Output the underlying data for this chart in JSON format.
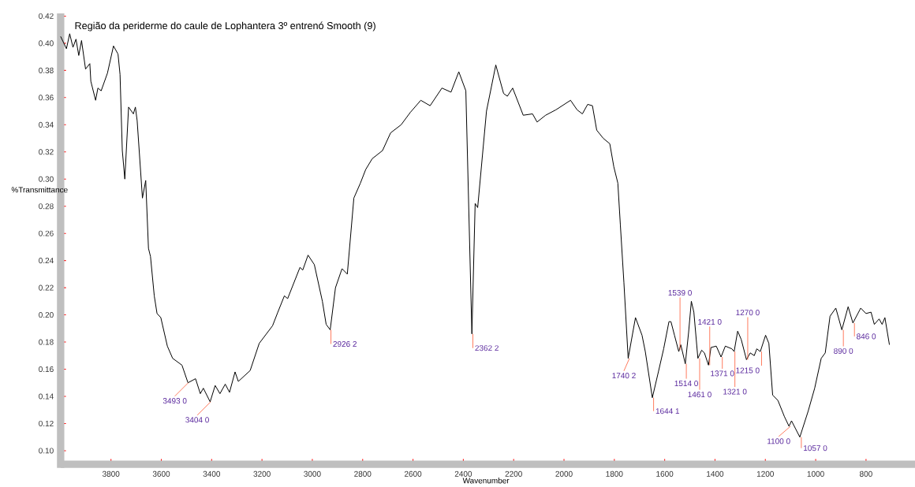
{
  "chart_data": {
    "type": "line",
    "title": "Região da periderme do caule de Lophantera 3º entrenó Smooth (9)",
    "xlabel": "Wavenumber",
    "ylabel": "%Transmittance",
    "xlim": [
      4000,
      620
    ],
    "ylim": [
      0.09,
      0.422
    ],
    "xticks": [
      3800,
      3600,
      3400,
      3200,
      3000,
      2800,
      2600,
      2400,
      2200,
      2000,
      1800,
      1600,
      1400,
      1200,
      1000,
      800
    ],
    "yticks": [
      {
        "value": 0.1,
        "label": "0.10"
      },
      {
        "value": 0.12,
        "label": "0.12"
      },
      {
        "value": 0.14,
        "label": "0.14"
      },
      {
        "value": 0.16,
        "label": "0.16"
      },
      {
        "value": 0.18,
        "label": "0.18"
      },
      {
        "value": 0.2,
        "label": "0.20"
      },
      {
        "value": 0.22,
        "label": "0.22"
      },
      {
        "value": 0.24,
        "label": "0.24"
      },
      {
        "value": 0.26,
        "label": "0.26"
      },
      {
        "value": 0.28,
        "label": "0.28"
      },
      {
        "value": 0.3,
        "label": "0.30"
      },
      {
        "value": 0.32,
        "label": "0.32"
      },
      {
        "value": 0.34,
        "label": "0.34"
      },
      {
        "value": 0.36,
        "label": "0.36"
      },
      {
        "value": 0.38,
        "label": "0.38"
      },
      {
        "value": 0.4,
        "label": "0.40"
      },
      {
        "value": 0.42,
        "label": "0.42"
      }
    ],
    "grid": false,
    "marker": "none",
    "line_style": "solid",
    "series": [
      {
        "color": "#000000",
        "x": [
          4000,
          3977,
          3964,
          3951,
          3939,
          3928,
          3917,
          3901,
          3884,
          3880,
          3861,
          3852,
          3839,
          3814,
          3790,
          3772,
          3764,
          3755,
          3745,
          3730,
          3711,
          3703,
          3696,
          3675,
          3662,
          3651,
          3643,
          3628,
          3617,
          3602,
          3576,
          3555,
          3518,
          3494,
          3464,
          3445,
          3433,
          3406,
          3386,
          3367,
          3346,
          3329,
          3307,
          3294,
          3247,
          3211,
          3158,
          3137,
          3111,
          3098,
          3049,
          3038,
          3017,
          2992,
          2960,
          2945,
          2929,
          2908,
          2882,
          2861,
          2835,
          2809,
          2788,
          2762,
          2721,
          2689,
          2647,
          2611,
          2569,
          2532,
          2485,
          2449,
          2418,
          2390,
          2366,
          2353,
          2343,
          2308,
          2271,
          2240,
          2225,
          2204,
          2162,
          2125,
          2107,
          2073,
          2032,
          1974,
          1948,
          1927,
          1906,
          1887,
          1870,
          1844,
          1818,
          1802,
          1786,
          1776,
          1762,
          1745,
          1716,
          1690,
          1677,
          1649,
          1625,
          1604,
          1583,
          1575,
          1561,
          1544,
          1536,
          1518,
          1505,
          1494,
          1484,
          1468,
          1453,
          1442,
          1426,
          1416,
          1395,
          1376,
          1359,
          1333,
          1324,
          1310,
          1296,
          1275,
          1260,
          1244,
          1234,
          1220,
          1199,
          1186,
          1171,
          1150,
          1124,
          1106,
          1096,
          1063,
          1030,
          1004,
          978,
          962,
          943,
          920,
          896,
          871,
          852,
          821,
          800,
          780,
          767,
          748,
          736,
          725,
          707
        ],
        "values": [
          0.405,
          0.396,
          0.407,
          0.397,
          0.403,
          0.391,
          0.402,
          0.381,
          0.385,
          0.372,
          0.358,
          0.367,
          0.365,
          0.378,
          0.398,
          0.392,
          0.377,
          0.321,
          0.3,
          0.353,
          0.348,
          0.353,
          0.343,
          0.286,
          0.299,
          0.249,
          0.243,
          0.214,
          0.201,
          0.198,
          0.177,
          0.168,
          0.163,
          0.15,
          0.153,
          0.142,
          0.146,
          0.136,
          0.148,
          0.142,
          0.149,
          0.143,
          0.158,
          0.151,
          0.159,
          0.179,
          0.192,
          0.202,
          0.214,
          0.212,
          0.235,
          0.233,
          0.244,
          0.237,
          0.21,
          0.193,
          0.189,
          0.22,
          0.234,
          0.23,
          0.286,
          0.297,
          0.307,
          0.315,
          0.321,
          0.334,
          0.34,
          0.349,
          0.358,
          0.354,
          0.367,
          0.364,
          0.379,
          0.365,
          0.186,
          0.282,
          0.279,
          0.35,
          0.384,
          0.363,
          0.361,
          0.367,
          0.347,
          0.348,
          0.342,
          0.347,
          0.351,
          0.358,
          0.351,
          0.348,
          0.355,
          0.354,
          0.336,
          0.33,
          0.326,
          0.309,
          0.297,
          0.266,
          0.224,
          0.168,
          0.198,
          0.185,
          0.173,
          0.139,
          0.158,
          0.175,
          0.195,
          0.195,
          0.185,
          0.173,
          0.178,
          0.164,
          0.187,
          0.21,
          0.202,
          0.168,
          0.174,
          0.172,
          0.163,
          0.176,
          0.177,
          0.169,
          0.177,
          0.175,
          0.173,
          0.188,
          0.182,
          0.167,
          0.172,
          0.17,
          0.175,
          0.173,
          0.185,
          0.179,
          0.141,
          0.137,
          0.125,
          0.118,
          0.122,
          0.11,
          0.129,
          0.146,
          0.168,
          0.172,
          0.199,
          0.205,
          0.189,
          0.206,
          0.194,
          0.205,
          0.201,
          0.202,
          0.193,
          0.197,
          0.193,
          0.198,
          0.178
        ]
      }
    ],
    "annotations": [
      {
        "text": "3493  0",
        "x": 3493,
        "y": 0.15
      },
      {
        "text": "3404  0",
        "x": 3404,
        "y": 0.136
      },
      {
        "text": "2926  2",
        "x": 2926,
        "y": 0.189
      },
      {
        "text": "2362  2",
        "x": 2362,
        "y": 0.186
      },
      {
        "text": "1740  2",
        "x": 1740,
        "y": 0.168
      },
      {
        "text": "1644  1",
        "x": 1644,
        "y": 0.139
      },
      {
        "text": "1539  0",
        "x": 1539,
        "y": 0.174
      },
      {
        "text": "1514  0",
        "x": 1514,
        "y": 0.164
      },
      {
        "text": "1461  0",
        "x": 1461,
        "y": 0.168
      },
      {
        "text": "1421  0",
        "x": 1421,
        "y": 0.163
      },
      {
        "text": "1371  0",
        "x": 1371,
        "y": 0.169
      },
      {
        "text": "1321  0",
        "x": 1321,
        "y": 0.173
      },
      {
        "text": "1270  0",
        "x": 1270,
        "y": 0.167
      },
      {
        "text": "1215  0",
        "x": 1215,
        "y": 0.173
      },
      {
        "text": "1100  0",
        "x": 1100,
        "y": 0.118
      },
      {
        "text": "1057  0",
        "x": 1057,
        "y": 0.11
      },
      {
        "text": "890  0",
        "x": 890,
        "y": 0.189
      },
      {
        "text": "846  0",
        "x": 846,
        "y": 0.194
      }
    ]
  }
}
